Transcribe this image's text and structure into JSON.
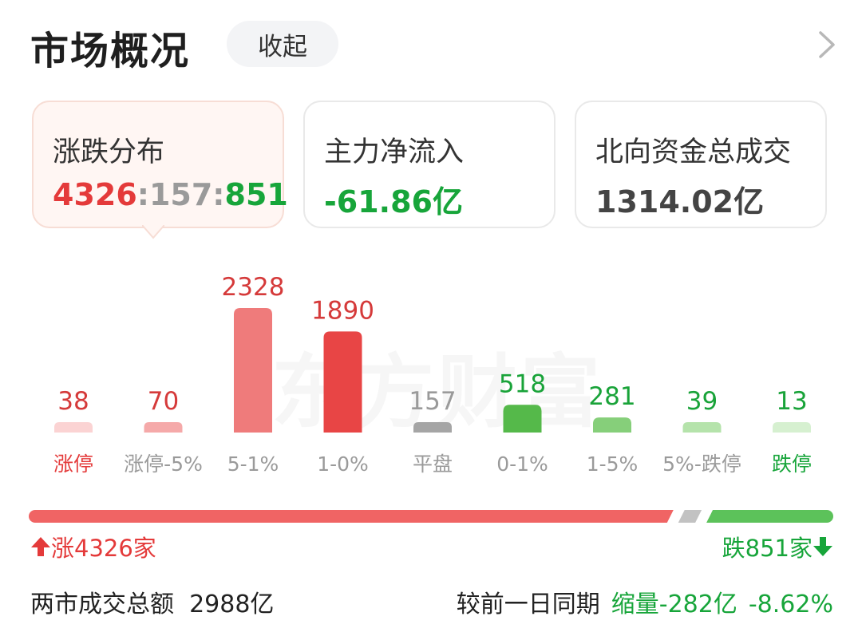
{
  "header": {
    "title": "市场概况",
    "collapse_label": "收起",
    "more_icon": "chevron-right-icon"
  },
  "stats": {
    "distribution": {
      "label": "涨跌分布",
      "up": "4326",
      "sep1": ":",
      "flat": "157",
      "sep2": ":",
      "down": "851"
    },
    "main_inflow": {
      "label": "主力净流入",
      "value": "-61.86亿"
    },
    "northbound": {
      "label": "北向资金总成交",
      "value": "1314.02亿"
    }
  },
  "chart_data": {
    "type": "bar",
    "categories": [
      "涨停",
      "涨停-5%",
      "5-1%",
      "1-0%",
      "平盘",
      "0-1%",
      "1-5%",
      "5%-跌停",
      "跌停"
    ],
    "values": [
      38,
      70,
      2328,
      1890,
      157,
      518,
      281,
      39,
      13
    ],
    "colors": [
      "#fbd3d3",
      "#f5a9a9",
      "#ef7b7b",
      "#e84545",
      "#a5a5a5",
      "#55b94a",
      "#86cf7a",
      "#b5e3ab",
      "#d6f0d0"
    ],
    "value_colors": [
      "#d53a3a",
      "#d53a3a",
      "#d53a3a",
      "#d53a3a",
      "#9a9a9a",
      "#19a339",
      "#19a339",
      "#19a339",
      "#19a339"
    ],
    "label_colors": [
      "#e43a3a",
      "#9a9a9a",
      "#9a9a9a",
      "#9a9a9a",
      "#9a9a9a",
      "#9a9a9a",
      "#9a9a9a",
      "#9a9a9a",
      "#17a53a"
    ],
    "ylim": [
      0,
      2328
    ],
    "grid": false,
    "watermark": "东方财富"
  },
  "ratio_bar": {
    "up": 4326,
    "flat": 157,
    "down": 851,
    "up_color": "#f06464",
    "flat_color": "#c2c2c2",
    "down_color": "#5cc25a"
  },
  "updown": {
    "up_label": "涨4326家",
    "down_label": "跌851家"
  },
  "footer": {
    "turnover_label": "两市成交总额",
    "turnover_value": "2988亿",
    "compare_label": "较前一日同期",
    "change_amount": "缩量-282亿",
    "change_pct": "-8.62%"
  }
}
